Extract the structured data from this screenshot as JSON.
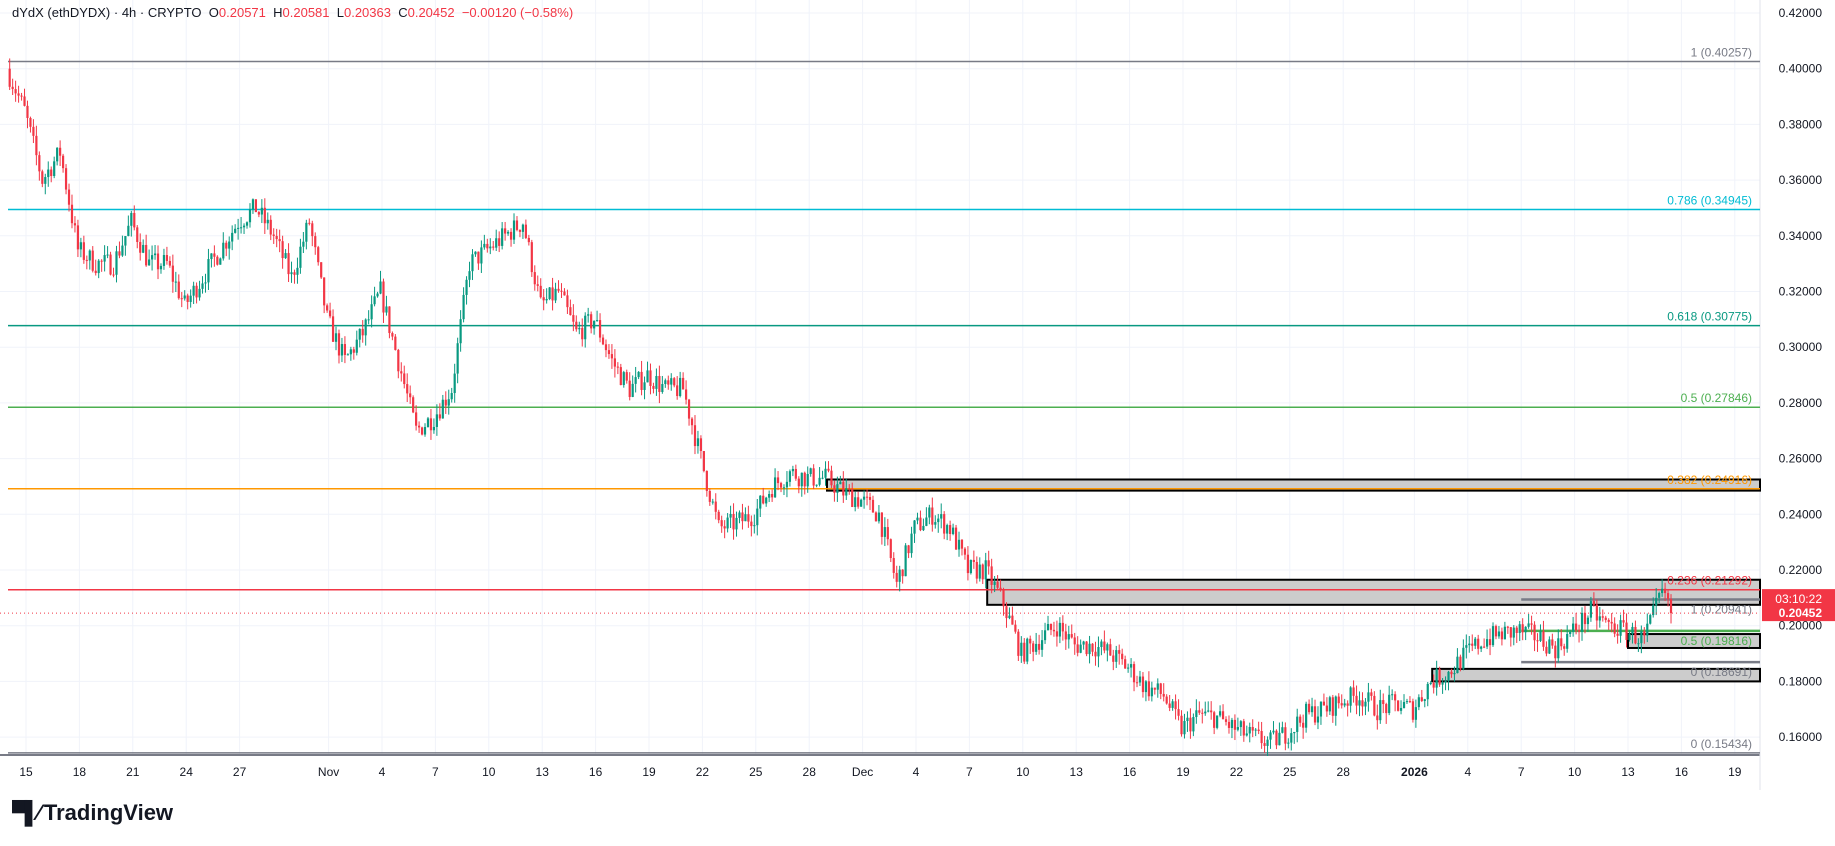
{
  "header": {
    "symbol": "dYdX (ethDYDX) · 4h · CRYPTO",
    "o_label": "O",
    "o": "0.20571",
    "h_label": "H",
    "h": "0.20581",
    "l_label": "L",
    "l": "0.20363",
    "c_label": "C",
    "c": "0.20452",
    "change": "−0.00120 (−0.58%)"
  },
  "price_label": {
    "price": "0.20452",
    "countdown": "03:10:22"
  },
  "logo": "TradingView",
  "colors": {
    "up": "#089981",
    "down": "#f23645",
    "grid": "#f0f3fa",
    "zone": "#cccccc"
  },
  "chart_data": {
    "type": "candlestick",
    "interval": "4h",
    "ylim": [
      0.15,
      0.42
    ],
    "y_ticks": [
      "0.16000",
      "0.18000",
      "0.20000",
      "0.22000",
      "0.24000",
      "0.26000",
      "0.28000",
      "0.30000",
      "0.32000",
      "0.34000",
      "0.36000",
      "0.38000",
      "0.40000",
      "0.42000"
    ],
    "x_ticks": [
      {
        "label": "15",
        "date": "2025-10-15"
      },
      {
        "label": "18",
        "date": "2025-10-18"
      },
      {
        "label": "21",
        "date": "2025-10-21"
      },
      {
        "label": "24",
        "date": "2025-10-24"
      },
      {
        "label": "27",
        "date": "2025-10-27"
      },
      {
        "label": "Nov",
        "date": "2025-11-01"
      },
      {
        "label": "4",
        "date": "2025-11-04"
      },
      {
        "label": "7",
        "date": "2025-11-07"
      },
      {
        "label": "10",
        "date": "2025-11-10"
      },
      {
        "label": "13",
        "date": "2025-11-13"
      },
      {
        "label": "16",
        "date": "2025-11-16"
      },
      {
        "label": "19",
        "date": "2025-11-19"
      },
      {
        "label": "22",
        "date": "2025-11-22"
      },
      {
        "label": "25",
        "date": "2025-11-25"
      },
      {
        "label": "28",
        "date": "2025-11-28"
      },
      {
        "label": "Dec",
        "date": "2025-12-01"
      },
      {
        "label": "4",
        "date": "2025-12-04"
      },
      {
        "label": "7",
        "date": "2025-12-07"
      },
      {
        "label": "10",
        "date": "2025-12-10"
      },
      {
        "label": "13",
        "date": "2025-12-13"
      },
      {
        "label": "16",
        "date": "2025-12-16"
      },
      {
        "label": "19",
        "date": "2025-12-19"
      },
      {
        "label": "22",
        "date": "2025-12-22"
      },
      {
        "label": "25",
        "date": "2025-12-25"
      },
      {
        "label": "28",
        "date": "2025-12-28"
      },
      {
        "label": "2026",
        "date": "2026-01-01"
      },
      {
        "label": "4",
        "date": "2026-01-04"
      },
      {
        "label": "7",
        "date": "2026-01-07"
      },
      {
        "label": "10",
        "date": "2026-01-10"
      },
      {
        "label": "13",
        "date": "2026-01-13"
      },
      {
        "label": "16",
        "date": "2026-01-16"
      },
      {
        "label": "19",
        "date": "2026-01-19"
      }
    ],
    "daily_close_start": "2025-10-14",
    "daily_close": [
      0.385,
      0.36,
      0.37,
      0.335,
      0.33,
      0.33,
      0.345,
      0.33,
      0.33,
      0.315,
      0.325,
      0.335,
      0.345,
      0.35,
      0.34,
      0.325,
      0.345,
      0.31,
      0.295,
      0.305,
      0.32,
      0.295,
      0.27,
      0.275,
      0.285,
      0.33,
      0.335,
      0.34,
      0.345,
      0.315,
      0.32,
      0.305,
      0.31,
      0.295,
      0.285,
      0.29,
      0.285,
      0.285,
      0.26,
      0.235,
      0.237,
      0.24,
      0.25,
      0.255,
      0.253,
      0.253,
      0.248,
      0.245,
      0.24,
      0.215,
      0.235,
      0.24,
      0.235,
      0.22,
      0.22,
      0.208,
      0.19,
      0.195,
      0.2,
      0.193,
      0.193,
      0.19,
      0.185,
      0.178,
      0.175,
      0.163,
      0.168,
      0.167,
      0.163,
      0.16,
      0.158,
      0.162,
      0.168,
      0.17,
      0.173,
      0.175,
      0.17,
      0.172,
      0.17,
      0.18,
      0.183,
      0.19,
      0.195,
      0.197,
      0.198,
      0.196,
      0.192,
      0.198,
      0.205,
      0.2,
      0.198,
      0.195,
      0.212,
      0.2045
    ],
    "last_price": 0.20452,
    "fib_levels": [
      {
        "label": "1 (0.40257)",
        "value": 0.40257,
        "color": "#787b86",
        "from": "2025-10-14"
      },
      {
        "label": "0.786 (0.34945)",
        "value": 0.34945,
        "color": "#00bcd4",
        "from": "2025-10-14"
      },
      {
        "label": "0.618 (0.30775)",
        "value": 0.30775,
        "color": "#089981",
        "from": "2025-10-14"
      },
      {
        "label": "0.5 (0.27846)",
        "value": 0.27846,
        "color": "#4caf50",
        "from": "2025-10-14"
      },
      {
        "label": "0.382 (0.24916)",
        "value": 0.24916,
        "color": "#ff9800",
        "from": "2025-10-14"
      },
      {
        "label": "0.236 (0.21292)",
        "value": 0.21292,
        "color": "#f23645",
        "from": "2025-10-14"
      },
      {
        "label": "0 (0.15434)",
        "value": 0.15434,
        "color": "#787b86",
        "from": "2025-10-14"
      },
      {
        "label": "1 (0.20941)",
        "value": 0.20941,
        "color": "#787b86",
        "from": "2026-01-07"
      },
      {
        "label": "0.5 (0.19816)",
        "value": 0.19816,
        "color": "#4caf50",
        "from": "2026-01-07"
      },
      {
        "label": "0 (0.18691)",
        "value": 0.18691,
        "color": "#787b86",
        "from": "2026-01-07"
      }
    ],
    "zones": [
      {
        "top": 0.2525,
        "bottom": 0.2485,
        "from": "2025-11-29"
      },
      {
        "top": 0.2165,
        "bottom": 0.2075,
        "from": "2025-12-08"
      },
      {
        "top": 0.197,
        "bottom": 0.192,
        "from": "2026-01-13"
      },
      {
        "top": 0.1845,
        "bottom": 0.18,
        "from": "2026-01-02"
      }
    ]
  }
}
